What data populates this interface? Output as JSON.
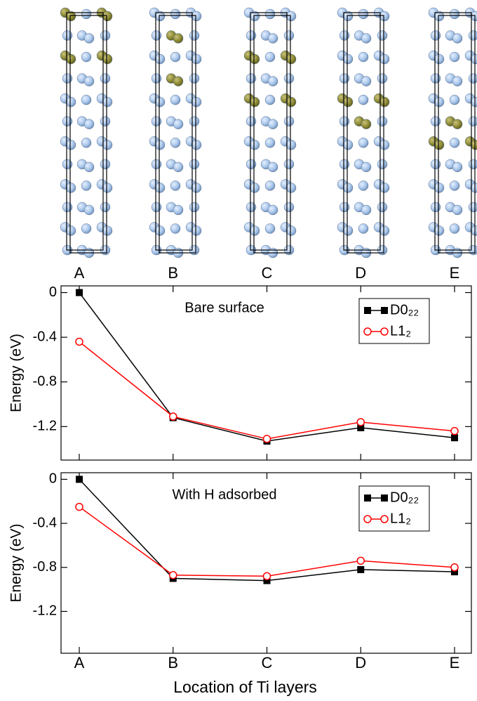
{
  "chart_data": [
    {
      "type": "line",
      "ylabel": "Energy (eV)",
      "annotation": "Bare surface",
      "categories": [
        "A",
        "B",
        "C",
        "D",
        "E"
      ],
      "series": [
        {
          "name": "D0₂₂",
          "color": "#000000",
          "marker": "square",
          "values": [
            0,
            -1.12,
            -1.33,
            -1.21,
            -1.3
          ]
        },
        {
          "name": "L1₂",
          "color": "#ff0000",
          "marker": "circle",
          "values": [
            -0.44,
            -1.11,
            -1.31,
            -1.16,
            -1.24
          ]
        }
      ],
      "ylim": [
        -1.5,
        0.06
      ],
      "yticks": [
        0,
        -0.4,
        -0.8,
        -1.2
      ],
      "legend": "upper right"
    },
    {
      "type": "line",
      "ylabel": "Energy (eV)",
      "xlabel": "Location of Ti layers",
      "annotation": "With H adsorbed",
      "categories": [
        "A",
        "B",
        "C",
        "D",
        "E"
      ],
      "series": [
        {
          "name": "D0₂₂",
          "color": "#000000",
          "marker": "square",
          "values": [
            0,
            -0.9,
            -0.92,
            -0.82,
            -0.84
          ]
        },
        {
          "name": "L1₂",
          "color": "#ff0000",
          "marker": "circle",
          "values": [
            -0.25,
            -0.87,
            -0.88,
            -0.74,
            -0.8
          ]
        }
      ],
      "ylim": [
        -1.58,
        0.06
      ],
      "yticks": [
        0,
        -0.4,
        -0.8,
        -1.2
      ],
      "legend": "upper right"
    }
  ]
}
